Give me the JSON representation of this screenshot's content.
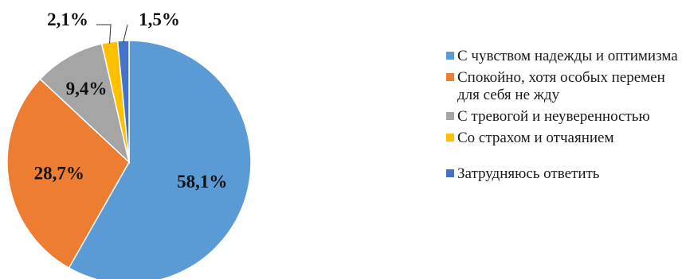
{
  "chart_data": {
    "type": "pie",
    "categories": [
      "С чувством надежды и оптимизма",
      "Спокойно, хотя особых перемен для себя не жду",
      "С тревогой и неуверенностью",
      "Со страхом и отчаянием",
      "Затрудняюсь ответить"
    ],
    "values": [
      58.1,
      28.7,
      9.4,
      2.1,
      1.5
    ],
    "data_labels": [
      "58,1%",
      "28,7%",
      "9,4%",
      "2,1%",
      "1,5%"
    ],
    "colors": [
      "#5B9BD5",
      "#ED7D31",
      "#A5A5A5",
      "#FFC000",
      "#4472C4"
    ],
    "start_angle_deg": 0,
    "direction": "clockwise",
    "legend_position": "right",
    "title": ""
  },
  "legend": {
    "items": [
      {
        "label": "С чувством надежды и оптимизма",
        "color": "#5B9BD5"
      },
      {
        "label": "Спокойно, хотя особых перемен для себя не жду",
        "color": "#ED7D31"
      },
      {
        "label": "С тревогой и неуверенностью",
        "color": "#A5A5A5"
      },
      {
        "label": "Со страхом и отчаянием",
        "color": "#FFC000"
      },
      {
        "label": "Затрудняюсь ответить",
        "color": "#4472C4"
      }
    ]
  }
}
